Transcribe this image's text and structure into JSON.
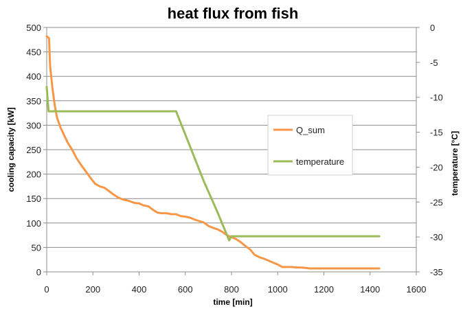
{
  "chart_data": {
    "type": "line",
    "title": "heat flux from fish",
    "xlabel": "time [min]",
    "ylabel": "cooling capacity [kW]",
    "y2label": "temperature [°C]",
    "xlim": [
      0,
      1600
    ],
    "ylim": [
      0,
      500
    ],
    "y2lim": [
      -35,
      0
    ],
    "x_ticks": [
      0,
      200,
      400,
      600,
      800,
      1000,
      1200,
      1400,
      1600
    ],
    "y_ticks": [
      0,
      50,
      100,
      150,
      200,
      250,
      300,
      350,
      400,
      450,
      500
    ],
    "y2_ticks": [
      0,
      -5,
      -10,
      -15,
      -20,
      -25,
      -30,
      -35
    ],
    "grid": true,
    "legend_position": "right",
    "series": [
      {
        "name": "Q_sum",
        "axis": "left",
        "color": "#f79646",
        "x": [
          0,
          10,
          15,
          25,
          35,
          45,
          60,
          75,
          90,
          110,
          130,
          150,
          170,
          190,
          210,
          230,
          250,
          270,
          290,
          310,
          330,
          350,
          380,
          400,
          420,
          440,
          460,
          480,
          500,
          520,
          540,
          560,
          580,
          600,
          620,
          640,
          660,
          680,
          700,
          720,
          740,
          760,
          780,
          800,
          820,
          840,
          860,
          880,
          900,
          920,
          940,
          960,
          980,
          1000,
          1020,
          1040,
          1060,
          1080,
          1100,
          1120,
          1140,
          1200,
          1300,
          1440
        ],
        "values": [
          482,
          478,
          420,
          375,
          340,
          315,
          295,
          280,
          265,
          250,
          232,
          218,
          205,
          192,
          180,
          175,
          172,
          165,
          158,
          152,
          148,
          146,
          141,
          140,
          136,
          134,
          127,
          121,
          120,
          120,
          118,
          118,
          114,
          113,
          111,
          107,
          104,
          101,
          94,
          90,
          87,
          82,
          75,
          71,
          67,
          61,
          53,
          46,
          35,
          30,
          27,
          23,
          19,
          15,
          10,
          10,
          10,
          9,
          9,
          8,
          7,
          7,
          7,
          7
        ]
      },
      {
        "name": "temperature",
        "axis": "right",
        "color": "#9bbb59",
        "x": [
          0,
          8,
          15,
          560,
          620,
          680,
          740,
          790,
          800,
          830,
          900,
          1000,
          1200,
          1440
        ],
        "values": [
          -8.5,
          -12,
          -12,
          -12,
          -17,
          -22,
          -26.5,
          -30.5,
          -29.9,
          -29.9,
          -29.9,
          -29.9,
          -29.9,
          -29.9
        ]
      }
    ]
  }
}
